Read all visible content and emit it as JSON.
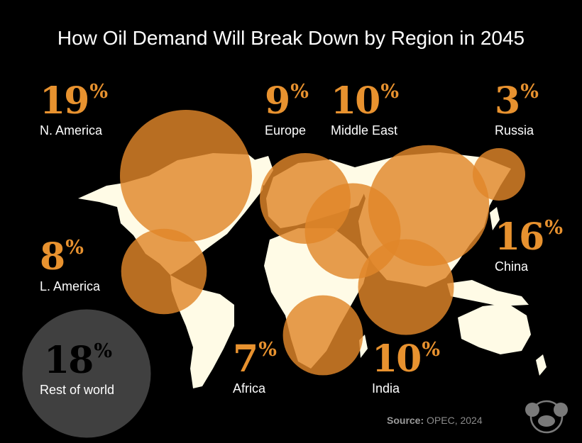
{
  "title": "How Oil Demand Will Break Down by Region in 2045",
  "source": {
    "label": "Source:",
    "value": "OPEC, 2024"
  },
  "colors": {
    "bubble": "#e0862a",
    "accent": "#e8922f",
    "land": "#fffbe6",
    "rest": "#555555"
  },
  "chart_data": {
    "type": "bubble",
    "title": "How Oil Demand Will Break Down by Region in 2045",
    "unit": "%",
    "categories": [
      "N. America",
      "Europe",
      "Middle East",
      "Russia",
      "China",
      "L. America",
      "Africa",
      "India",
      "Rest of world"
    ],
    "values": [
      19,
      9,
      10,
      3,
      16,
      8,
      7,
      10,
      18
    ]
  }
}
